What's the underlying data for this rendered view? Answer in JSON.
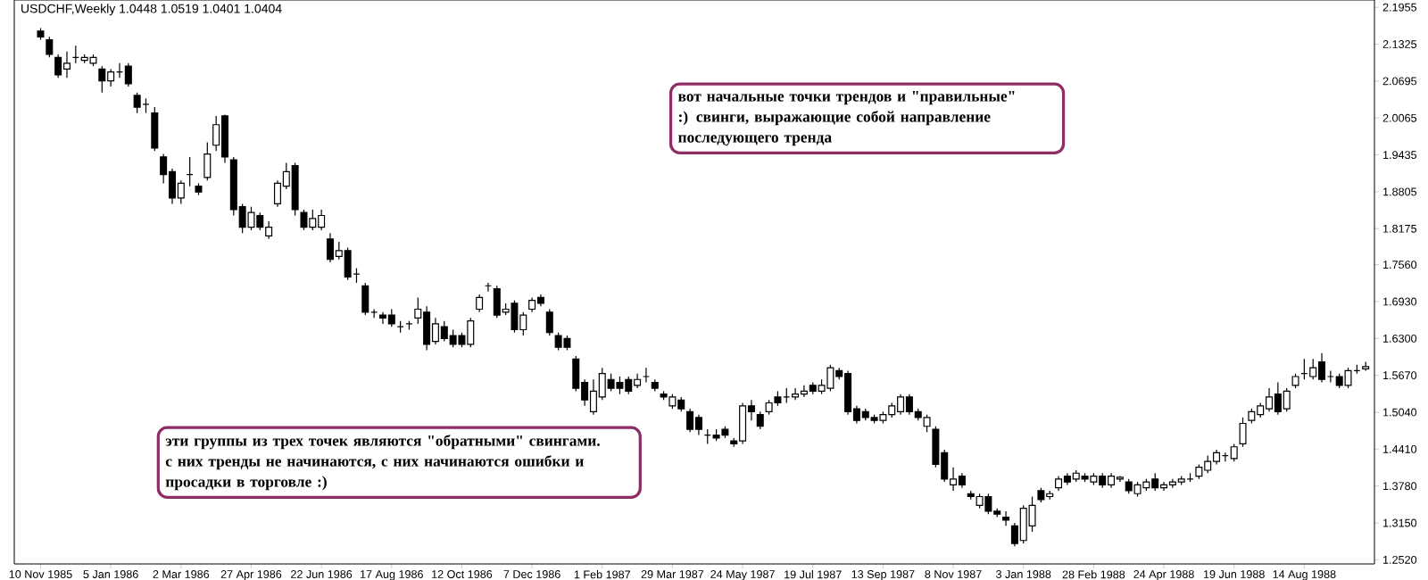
{
  "chart_data": {
    "type": "candlestick",
    "title": "USDCHF,Weekly  1.0448 1.0519 1.0401 1.0404",
    "annotations": [
      "вот начальные точки трендов и \"правильные\" :) свинги, выражающие собой направление последующего тренда",
      "эти группы из трех точек являются \"обратными\" свингами. с них тренды не начинаются, с них начинаются ошибки и просадки в торговле  :)"
    ],
    "x": [
      "1985-11-10",
      "1985-11-17",
      "1985-11-24",
      "1985-12-01",
      "1985-12-08",
      "1985-12-15",
      "1985-12-22",
      "1985-12-29",
      "1986-01-05",
      "1986-01-12",
      "1986-01-19",
      "1986-01-26",
      "1986-02-02",
      "1986-02-09",
      "1986-02-16",
      "1986-02-23",
      "1986-03-02",
      "1986-03-09",
      "1986-03-16",
      "1986-03-23",
      "1986-03-30",
      "1986-04-06",
      "1986-04-13",
      "1986-04-20",
      "1986-04-27",
      "1986-05-04",
      "1986-05-11",
      "1986-05-18",
      "1986-05-25",
      "1986-06-01",
      "1986-06-08",
      "1986-06-15",
      "1986-06-22",
      "1986-06-29",
      "1986-07-06",
      "1986-07-13",
      "1986-07-20",
      "1986-07-27",
      "1986-08-03",
      "1986-08-10",
      "1986-08-17",
      "1986-08-24",
      "1986-08-31",
      "1986-09-07",
      "1986-09-14",
      "1986-09-21",
      "1986-09-28",
      "1986-10-05",
      "1986-10-12",
      "1986-10-19",
      "1986-10-26",
      "1986-11-02",
      "1986-11-09",
      "1986-11-16",
      "1986-11-23",
      "1986-11-30",
      "1986-12-07",
      "1986-12-14",
      "1986-12-21",
      "1986-12-28",
      "1987-01-04",
      "1987-01-11",
      "1987-01-18",
      "1987-01-25",
      "1987-02-01",
      "1987-02-08",
      "1987-02-15",
      "1987-02-22",
      "1987-03-01",
      "1987-03-08",
      "1987-03-15",
      "1987-03-22",
      "1987-03-29",
      "1987-04-05",
      "1987-04-12",
      "1987-04-19",
      "1987-04-26",
      "1987-05-03",
      "1987-05-10",
      "1987-05-17",
      "1987-05-24",
      "1987-05-31",
      "1987-06-07",
      "1987-06-14",
      "1987-06-21",
      "1987-06-28",
      "1987-07-05",
      "1987-07-12",
      "1987-07-19",
      "1987-07-26",
      "1987-08-02",
      "1987-08-09",
      "1987-08-16",
      "1987-08-23",
      "1987-08-30",
      "1987-09-06",
      "1987-09-13",
      "1987-09-20",
      "1987-09-27",
      "1987-10-04",
      "1987-10-11",
      "1987-10-18",
      "1987-10-25",
      "1987-11-01",
      "1987-11-08",
      "1987-11-15",
      "1987-11-22",
      "1987-11-29",
      "1987-12-06",
      "1987-12-13",
      "1987-12-20",
      "1987-12-27",
      "1988-01-03",
      "1988-01-10",
      "1988-01-17",
      "1988-01-24",
      "1988-01-31",
      "1988-02-07",
      "1988-02-14",
      "1988-02-21",
      "1988-02-28",
      "1988-03-06",
      "1988-03-13",
      "1988-03-20",
      "1988-03-27",
      "1988-04-03",
      "1988-04-10",
      "1988-04-17",
      "1988-04-24",
      "1988-05-01",
      "1988-05-08",
      "1988-05-15",
      "1988-05-22",
      "1988-05-29",
      "1988-06-05",
      "1988-06-12",
      "1988-06-19",
      "1988-06-26",
      "1988-07-03",
      "1988-07-10",
      "1988-07-17",
      "1988-07-24",
      "1988-07-31",
      "1988-08-07",
      "1988-08-14",
      "1988-08-21",
      "1988-08-28",
      "1988-09-04",
      "1988-09-11",
      "1988-09-18",
      "1988-09-25",
      "1988-10-02"
    ],
    "ohlc": [
      [
        2.155,
        2.16,
        2.14,
        2.145
      ],
      [
        2.14,
        2.145,
        2.11,
        2.115
      ],
      [
        2.11,
        2.115,
        2.075,
        2.08
      ],
      [
        2.09,
        2.12,
        2.075,
        2.1
      ],
      [
        2.11,
        2.13,
        2.1,
        2.11
      ],
      [
        2.105,
        2.115,
        2.1,
        2.11
      ],
      [
        2.1,
        2.115,
        2.095,
        2.11
      ],
      [
        2.09,
        2.095,
        2.05,
        2.07
      ],
      [
        2.07,
        2.09,
        2.06,
        2.085
      ],
      [
        2.085,
        2.1,
        2.075,
        2.085
      ],
      [
        2.095,
        2.1,
        2.06,
        2.065
      ],
      [
        2.045,
        2.05,
        2.015,
        2.025
      ],
      [
        2.03,
        2.04,
        2.015,
        2.03
      ],
      [
        2.015,
        2.025,
        1.95,
        1.955
      ],
      [
        1.94,
        1.945,
        1.895,
        1.91
      ],
      [
        1.915,
        1.92,
        1.86,
        1.87
      ],
      [
        1.87,
        1.9,
        1.86,
        1.895
      ],
      [
        1.91,
        1.94,
        1.89,
        1.91
      ],
      [
        1.89,
        1.895,
        1.875,
        1.88
      ],
      [
        1.905,
        1.965,
        1.9,
        1.945
      ],
      [
        1.96,
        2.01,
        1.95,
        1.995
      ],
      [
        2.01,
        2.012,
        1.93,
        1.94
      ],
      [
        1.935,
        1.94,
        1.84,
        1.85
      ],
      [
        1.855,
        1.86,
        1.81,
        1.82
      ],
      [
        1.82,
        1.855,
        1.815,
        1.845
      ],
      [
        1.84,
        1.845,
        1.815,
        1.82
      ],
      [
        1.805,
        1.83,
        1.8,
        1.82
      ],
      [
        1.86,
        1.9,
        1.855,
        1.895
      ],
      [
        1.89,
        1.93,
        1.885,
        1.915
      ],
      [
        1.925,
        1.93,
        1.84,
        1.85
      ],
      [
        1.845,
        1.85,
        1.815,
        1.82
      ],
      [
        1.82,
        1.85,
        1.815,
        1.835
      ],
      [
        1.82,
        1.85,
        1.815,
        1.84
      ],
      [
        1.8,
        1.81,
        1.76,
        1.765
      ],
      [
        1.77,
        1.795,
        1.765,
        1.78
      ],
      [
        1.78,
        1.785,
        1.73,
        1.735
      ],
      [
        1.74,
        1.75,
        1.725,
        1.74
      ],
      [
        1.72,
        1.725,
        1.67,
        1.675
      ],
      [
        1.675,
        1.68,
        1.665,
        1.675
      ],
      [
        1.67,
        1.675,
        1.655,
        1.665
      ],
      [
        1.67,
        1.68,
        1.65,
        1.655
      ],
      [
        1.65,
        1.66,
        1.64,
        1.65
      ],
      [
        1.655,
        1.66,
        1.645,
        1.655
      ],
      [
        1.665,
        1.7,
        1.655,
        1.68
      ],
      [
        1.675,
        1.685,
        1.61,
        1.62
      ],
      [
        1.625,
        1.665,
        1.62,
        1.655
      ],
      [
        1.65,
        1.66,
        1.625,
        1.63
      ],
      [
        1.635,
        1.645,
        1.615,
        1.62
      ],
      [
        1.635,
        1.64,
        1.615,
        1.62
      ],
      [
        1.62,
        1.665,
        1.615,
        1.66
      ],
      [
        1.68,
        1.705,
        1.675,
        1.7
      ],
      [
        1.72,
        1.725,
        1.71,
        1.72
      ],
      [
        1.715,
        1.72,
        1.665,
        1.67
      ],
      [
        1.675,
        1.69,
        1.67,
        1.68
      ],
      [
        1.69,
        1.695,
        1.64,
        1.645
      ],
      [
        1.645,
        1.675,
        1.635,
        1.67
      ],
      [
        1.68,
        1.7,
        1.675,
        1.695
      ],
      [
        1.7,
        1.705,
        1.685,
        1.69
      ],
      [
        1.675,
        1.68,
        1.635,
        1.64
      ],
      [
        1.635,
        1.64,
        1.61,
        1.615
      ],
      [
        1.63,
        1.635,
        1.61,
        1.615
      ],
      [
        1.595,
        1.6,
        1.54,
        1.545
      ],
      [
        1.555,
        1.56,
        1.515,
        1.525
      ],
      [
        1.505,
        1.56,
        1.5,
        1.54
      ],
      [
        1.53,
        1.58,
        1.525,
        1.57
      ],
      [
        1.56,
        1.57,
        1.54,
        1.545
      ],
      [
        1.555,
        1.565,
        1.535,
        1.545
      ],
      [
        1.56,
        1.565,
        1.535,
        1.54
      ],
      [
        1.55,
        1.57,
        1.545,
        1.56
      ],
      [
        1.565,
        1.58,
        1.555,
        1.565
      ],
      [
        1.555,
        1.56,
        1.54,
        1.545
      ],
      [
        1.535,
        1.54,
        1.525,
        1.53
      ],
      [
        1.515,
        1.535,
        1.51,
        1.53
      ],
      [
        1.525,
        1.53,
        1.505,
        1.51
      ],
      [
        1.505,
        1.51,
        1.47,
        1.475
      ],
      [
        1.495,
        1.5,
        1.465,
        1.475
      ],
      [
        1.465,
        1.475,
        1.45,
        1.465
      ],
      [
        1.465,
        1.475,
        1.455,
        1.46
      ],
      [
        1.475,
        1.48,
        1.46,
        1.465
      ],
      [
        1.455,
        1.46,
        1.445,
        1.45
      ],
      [
        1.455,
        1.52,
        1.45,
        1.515
      ],
      [
        1.515,
        1.525,
        1.49,
        1.505
      ],
      [
        1.5,
        1.505,
        1.475,
        1.48
      ],
      [
        1.505,
        1.525,
        1.5,
        1.52
      ],
      [
        1.53,
        1.54,
        1.515,
        1.52
      ],
      [
        1.53,
        1.545,
        1.52,
        1.53
      ],
      [
        1.53,
        1.545,
        1.525,
        1.535
      ],
      [
        1.535,
        1.55,
        1.53,
        1.54
      ],
      [
        1.55,
        1.555,
        1.535,
        1.54
      ],
      [
        1.54,
        1.56,
        1.535,
        1.55
      ],
      [
        1.545,
        1.585,
        1.54,
        1.58
      ],
      [
        1.575,
        1.58,
        1.56,
        1.565
      ],
      [
        1.57,
        1.575,
        1.5,
        1.505
      ],
      [
        1.51,
        1.515,
        1.485,
        1.49
      ],
      [
        1.505,
        1.51,
        1.49,
        1.495
      ],
      [
        1.495,
        1.5,
        1.485,
        1.49
      ],
      [
        1.49,
        1.505,
        1.485,
        1.5
      ],
      [
        1.5,
        1.52,
        1.495,
        1.515
      ],
      [
        1.505,
        1.535,
        1.5,
        1.53
      ],
      [
        1.53,
        1.535,
        1.5,
        1.505
      ],
      [
        1.505,
        1.51,
        1.49,
        1.495
      ],
      [
        1.48,
        1.5,
        1.47,
        1.495
      ],
      [
        1.475,
        1.48,
        1.41,
        1.415
      ],
      [
        1.435,
        1.44,
        1.385,
        1.39
      ],
      [
        1.38,
        1.41,
        1.37,
        1.39
      ],
      [
        1.395,
        1.4,
        1.375,
        1.38
      ],
      [
        1.365,
        1.37,
        1.355,
        1.36
      ],
      [
        1.345,
        1.365,
        1.34,
        1.36
      ],
      [
        1.36,
        1.365,
        1.33,
        1.335
      ],
      [
        1.335,
        1.34,
        1.325,
        1.33
      ],
      [
        1.325,
        1.335,
        1.31,
        1.32
      ],
      [
        1.31,
        1.315,
        1.275,
        1.28
      ],
      [
        1.285,
        1.345,
        1.28,
        1.34
      ],
      [
        1.31,
        1.36,
        1.3,
        1.345
      ],
      [
        1.37,
        1.375,
        1.35,
        1.355
      ],
      [
        1.36,
        1.37,
        1.355,
        1.365
      ],
      [
        1.375,
        1.395,
        1.37,
        1.39
      ],
      [
        1.395,
        1.4,
        1.38,
        1.385
      ],
      [
        1.39,
        1.405,
        1.385,
        1.4
      ],
      [
        1.395,
        1.4,
        1.385,
        1.39
      ],
      [
        1.385,
        1.4,
        1.38,
        1.395
      ],
      [
        1.395,
        1.4,
        1.375,
        1.38
      ],
      [
        1.38,
        1.4,
        1.375,
        1.395
      ],
      [
        1.39,
        1.395,
        1.385,
        1.393
      ],
      [
        1.385,
        1.39,
        1.365,
        1.37
      ],
      [
        1.365,
        1.385,
        1.36,
        1.38
      ],
      [
        1.375,
        1.39,
        1.37,
        1.385
      ],
      [
        1.39,
        1.4,
        1.37,
        1.375
      ],
      [
        1.375,
        1.385,
        1.37,
        1.38
      ],
      [
        1.38,
        1.39,
        1.375,
        1.385
      ],
      [
        1.385,
        1.395,
        1.38,
        1.39
      ],
      [
        1.39,
        1.4,
        1.385,
        1.39
      ],
      [
        1.395,
        1.415,
        1.39,
        1.41
      ],
      [
        1.405,
        1.43,
        1.4,
        1.42
      ],
      [
        1.42,
        1.44,
        1.415,
        1.435
      ],
      [
        1.43,
        1.435,
        1.42,
        1.43
      ],
      [
        1.425,
        1.45,
        1.42,
        1.445
      ],
      [
        1.45,
        1.495,
        1.445,
        1.485
      ],
      [
        1.49,
        1.51,
        1.485,
        1.505
      ],
      [
        1.5,
        1.52,
        1.495,
        1.515
      ],
      [
        1.51,
        1.545,
        1.505,
        1.53
      ],
      [
        1.535,
        1.555,
        1.5,
        1.505
      ],
      [
        1.51,
        1.545,
        1.505,
        1.54
      ],
      [
        1.55,
        1.57,
        1.545,
        1.565
      ],
      [
        1.57,
        1.595,
        1.56,
        1.57
      ],
      [
        1.565,
        1.595,
        1.56,
        1.58
      ],
      [
        1.59,
        1.605,
        1.555,
        1.56
      ],
      [
        1.565,
        1.575,
        1.555,
        1.565
      ],
      [
        1.565,
        1.57,
        1.545,
        1.55
      ],
      [
        1.55,
        1.58,
        1.545,
        1.575
      ],
      [
        1.575,
        1.585,
        1.57,
        1.575
      ],
      [
        1.578,
        1.59,
        1.575,
        1.582
      ]
    ],
    "xlim": [
      "1985-10-20",
      "1988-10-09"
    ],
    "ylim": [
      1.245,
      2.208
    ],
    "xticks": [
      {
        "value": "1985-11-10",
        "label": "10 Nov 1985"
      },
      {
        "value": "1986-01-05",
        "label": "5 Jan 1986"
      },
      {
        "value": "1986-03-02",
        "label": "2 Mar 1986"
      },
      {
        "value": "1986-04-27",
        "label": "27 Apr 1986"
      },
      {
        "value": "1986-06-22",
        "label": "22 Jun 1986"
      },
      {
        "value": "1986-08-17",
        "label": "17 Aug 1986"
      },
      {
        "value": "1986-10-12",
        "label": "12 Oct 1986"
      },
      {
        "value": "1986-12-07",
        "label": "7 Dec 1986"
      },
      {
        "value": "1987-02-01",
        "label": "1 Feb 1987"
      },
      {
        "value": "1987-03-29",
        "label": "29 Mar 1987"
      },
      {
        "value": "1987-05-24",
        "label": "24 May 1987"
      },
      {
        "value": "1987-07-19",
        "label": "19 Jul 1987"
      },
      {
        "value": "1987-09-13",
        "label": "13 Sep 1987"
      },
      {
        "value": "1987-11-08",
        "label": "8 Nov 1987"
      },
      {
        "value": "1988-01-03",
        "label": "3 Jan 1988"
      },
      {
        "value": "1988-02-28",
        "label": "28 Feb 1988"
      },
      {
        "value": "1988-04-24",
        "label": "24 Apr 1988"
      },
      {
        "value": "1988-06-19",
        "label": "19 Jun 1988"
      },
      {
        "value": "1988-08-14",
        "label": "14 Aug 1988"
      }
    ],
    "yticks": [
      {
        "value": 2.1955,
        "label": "2.1955"
      },
      {
        "value": 2.1325,
        "label": "2.1325"
      },
      {
        "value": 2.0695,
        "label": "2.0695"
      },
      {
        "value": 2.0065,
        "label": "2.0065"
      },
      {
        "value": 1.9435,
        "label": "1.9435"
      },
      {
        "value": 1.8805,
        "label": "1.8805"
      },
      {
        "value": 1.8175,
        "label": "1.8175"
      },
      {
        "value": 1.756,
        "label": "1.7560"
      },
      {
        "value": 1.693,
        "label": "1.6930"
      },
      {
        "value": 1.63,
        "label": "1.6300"
      },
      {
        "value": 1.567,
        "label": "1.5670"
      },
      {
        "value": 1.504,
        "label": "1.5040"
      },
      {
        "value": 1.441,
        "label": "1.4410"
      },
      {
        "value": 1.378,
        "label": "1.3780"
      },
      {
        "value": 1.315,
        "label": "1.3150"
      },
      {
        "value": 1.252,
        "label": "1.2520"
      }
    ]
  }
}
